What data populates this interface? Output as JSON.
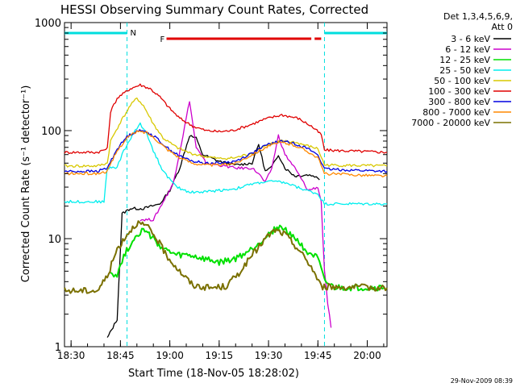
{
  "chart_data": {
    "type": "line",
    "title": "HESSI Observing Summary Count Rates, Corrected",
    "xlabel": "Start Time (18-Nov-05 18:28:02)",
    "ylabel": "Corrected Count Rate (s⁻¹ detector⁻¹)",
    "y_scale": "log",
    "ylim": [
      1,
      1000
    ],
    "xlim": [
      "18:28",
      "20:06"
    ],
    "x_ticks": [
      "18:30",
      "18:45",
      "19:00",
      "19:15",
      "19:30",
      "19:45",
      "20:00"
    ],
    "y_ticks": [
      "1",
      "10",
      "100",
      "1000"
    ],
    "legend_header": [
      "Det 1,3,4,5,6,9,",
      "Att 0"
    ],
    "legend_position": "right",
    "timestamp": "29-Nov-2009 08:39",
    "flags": [
      {
        "label": "N",
        "color": "#00dede",
        "intervals": [
          [
            "18:28",
            "18:47"
          ],
          [
            "19:47",
            "20:06"
          ]
        ]
      },
      {
        "label": "F",
        "color": "#e00000",
        "intervals": [
          [
            "18:59",
            "19:43"
          ],
          [
            "19:44",
            "19:46"
          ]
        ]
      }
    ],
    "series": [
      {
        "name": "3 - 6 keV",
        "color": "#000000",
        "points": [
          [
            "18:41",
            "1.2"
          ],
          [
            "18:44",
            "1.8"
          ],
          [
            "18:45.5",
            "17"
          ],
          [
            "18:48",
            "19"
          ],
          [
            "18:52",
            "19"
          ],
          [
            "18:57",
            "21"
          ],
          [
            "19:00",
            "28"
          ],
          [
            "19:03",
            "45"
          ],
          [
            "19:06",
            "90"
          ],
          [
            "19:08",
            "85"
          ],
          [
            "19:10",
            "60"
          ],
          [
            "19:15",
            "52"
          ],
          [
            "19:20",
            "48"
          ],
          [
            "19:25",
            "50"
          ],
          [
            "19:27",
            "75"
          ],
          [
            "19:29",
            "42"
          ],
          [
            "19:31",
            "46"
          ],
          [
            "19:33",
            "60"
          ],
          [
            "19:35",
            "45"
          ],
          [
            "19:38",
            "38"
          ],
          [
            "19:42",
            "39"
          ],
          [
            "19:44",
            "38"
          ],
          [
            "19:45.5",
            "35"
          ]
        ]
      },
      {
        "name": "6 - 12 keV",
        "color": "#cc00cc",
        "points": [
          [
            "18:51",
            "15"
          ],
          [
            "18:55",
            "15"
          ],
          [
            "18:58",
            "22"
          ],
          [
            "19:01",
            "32"
          ],
          [
            "19:04",
            "90"
          ],
          [
            "19:06",
            "190"
          ],
          [
            "19:08",
            "70"
          ],
          [
            "19:11",
            "50"
          ],
          [
            "19:15",
            "48"
          ],
          [
            "19:20",
            "45"
          ],
          [
            "19:25",
            "45"
          ],
          [
            "19:27",
            "40"
          ],
          [
            "19:29",
            "33"
          ],
          [
            "19:31",
            "45"
          ],
          [
            "19:33",
            "90"
          ],
          [
            "19:35",
            "60"
          ],
          [
            "19:38",
            "45"
          ],
          [
            "19:42",
            "28"
          ],
          [
            "19:45",
            "30"
          ],
          [
            "19:46",
            "22"
          ],
          [
            "19:47",
            "5"
          ],
          [
            "19:48",
            "2.5"
          ],
          [
            "19:49",
            "1.5"
          ]
        ]
      },
      {
        "name": "12 - 25 keV",
        "color": "#00e000",
        "points": [
          [
            "18:42",
            "5"
          ],
          [
            "18:44",
            "4.5"
          ],
          [
            "18:46",
            "7"
          ],
          [
            "18:50",
            "11"
          ],
          [
            "18:52",
            "12"
          ],
          [
            "18:55",
            "10"
          ],
          [
            "18:58",
            "8"
          ],
          [
            "19:02",
            "7"
          ],
          [
            "19:06",
            "7"
          ],
          [
            "19:10",
            "6.5"
          ],
          [
            "19:15",
            "6"
          ],
          [
            "19:20",
            "6.5"
          ],
          [
            "19:25",
            "8"
          ],
          [
            "19:30",
            "11"
          ],
          [
            "19:33",
            "13"
          ],
          [
            "19:37",
            "11"
          ],
          [
            "19:41",
            "8"
          ],
          [
            "19:45",
            "6.5"
          ],
          [
            "19:47",
            "4"
          ],
          [
            "19:50",
            "3.5"
          ],
          [
            "20:05",
            "3.5"
          ]
        ]
      },
      {
        "name": "25 - 50 keV",
        "color": "#00eeee",
        "points": [
          [
            "18:28",
            "22"
          ],
          [
            "18:38",
            "22"
          ],
          [
            "18:40",
            "22"
          ],
          [
            "18:41",
            "45"
          ],
          [
            "18:44",
            "46"
          ],
          [
            "18:46",
            "65"
          ],
          [
            "18:49",
            "95"
          ],
          [
            "18:51",
            "115"
          ],
          [
            "18:53",
            "95"
          ],
          [
            "18:55",
            "65"
          ],
          [
            "18:58",
            "42"
          ],
          [
            "19:02",
            "30"
          ],
          [
            "19:06",
            "27"
          ],
          [
            "19:10",
            "27"
          ],
          [
            "19:15",
            "28"
          ],
          [
            "19:20",
            "29"
          ],
          [
            "19:25",
            "32"
          ],
          [
            "19:30",
            "34"
          ],
          [
            "19:35",
            "33"
          ],
          [
            "19:40",
            "29"
          ],
          [
            "19:45",
            "26"
          ],
          [
            "19:47",
            "21"
          ],
          [
            "20:06",
            "21"
          ]
        ]
      },
      {
        "name": "50 - 100 keV",
        "color": "#d8c800",
        "points": [
          [
            "18:28",
            "47"
          ],
          [
            "18:38",
            "47"
          ],
          [
            "18:41",
            "50"
          ],
          [
            "18:42",
            "80"
          ],
          [
            "18:45",
            "120"
          ],
          [
            "18:48",
            "170"
          ],
          [
            "18:50",
            "200"
          ],
          [
            "18:52",
            "170"
          ],
          [
            "18:55",
            "115"
          ],
          [
            "18:58",
            "85"
          ],
          [
            "19:02",
            "70"
          ],
          [
            "19:06",
            "62"
          ],
          [
            "19:10",
            "58"
          ],
          [
            "19:15",
            "55"
          ],
          [
            "19:20",
            "56"
          ],
          [
            "19:25",
            "62"
          ],
          [
            "19:30",
            "75"
          ],
          [
            "19:34",
            "80"
          ],
          [
            "19:38",
            "78"
          ],
          [
            "19:42",
            "72"
          ],
          [
            "19:45",
            "68"
          ],
          [
            "19:47",
            "48"
          ],
          [
            "20:06",
            "47"
          ]
        ]
      },
      {
        "name": "100 - 300 keV",
        "color": "#e00000",
        "points": [
          [
            "18:28",
            "63"
          ],
          [
            "18:38",
            "63"
          ],
          [
            "18:41",
            "68"
          ],
          [
            "18:42",
            "150"
          ],
          [
            "18:44",
            "200"
          ],
          [
            "18:48",
            "245"
          ],
          [
            "18:51",
            "265"
          ],
          [
            "18:54",
            "245"
          ],
          [
            "18:57",
            "205"
          ],
          [
            "19:00",
            "160"
          ],
          [
            "19:03",
            "130"
          ],
          [
            "19:07",
            "110"
          ],
          [
            "19:11",
            "100"
          ],
          [
            "19:15",
            "98"
          ],
          [
            "19:19",
            "100"
          ],
          [
            "19:24",
            "112"
          ],
          [
            "19:29",
            "128"
          ],
          [
            "19:34",
            "140"
          ],
          [
            "19:39",
            "130"
          ],
          [
            "19:43",
            "110"
          ],
          [
            "19:46",
            "92"
          ],
          [
            "19:47",
            "66"
          ],
          [
            "20:06",
            "63"
          ]
        ]
      },
      {
        "name": "300 - 800 keV",
        "color": "#0000e0",
        "points": [
          [
            "18:28",
            "42"
          ],
          [
            "18:38",
            "42"
          ],
          [
            "18:41",
            "45"
          ],
          [
            "18:44",
            "68"
          ],
          [
            "18:47",
            "88"
          ],
          [
            "18:50",
            "100"
          ],
          [
            "18:53",
            "98"
          ],
          [
            "18:56",
            "85"
          ],
          [
            "18:59",
            "70"
          ],
          [
            "19:03",
            "58"
          ],
          [
            "19:07",
            "52"
          ],
          [
            "19:11",
            "50"
          ],
          [
            "19:15",
            "50"
          ],
          [
            "19:20",
            "52"
          ],
          [
            "19:25",
            "62"
          ],
          [
            "19:30",
            "75"
          ],
          [
            "19:34",
            "80"
          ],
          [
            "19:38",
            "76"
          ],
          [
            "19:42",
            "68"
          ],
          [
            "19:45",
            "60"
          ],
          [
            "19:47",
            "44"
          ],
          [
            "20:06",
            "42"
          ]
        ]
      },
      {
        "name": "800 - 7000 keV",
        "color": "#ff8800",
        "points": [
          [
            "18:28",
            "40"
          ],
          [
            "18:38",
            "40"
          ],
          [
            "18:41",
            "42"
          ],
          [
            "18:44",
            "65"
          ],
          [
            "18:47",
            "86"
          ],
          [
            "18:50",
            "98"
          ],
          [
            "18:53",
            "96"
          ],
          [
            "18:56",
            "82"
          ],
          [
            "18:59",
            "68"
          ],
          [
            "19:03",
            "56"
          ],
          [
            "19:07",
            "50"
          ],
          [
            "19:11",
            "48"
          ],
          [
            "19:15",
            "48"
          ],
          [
            "19:20",
            "50"
          ],
          [
            "19:25",
            "60"
          ],
          [
            "19:30",
            "72"
          ],
          [
            "19:34",
            "78"
          ],
          [
            "19:38",
            "73"
          ],
          [
            "19:42",
            "64"
          ],
          [
            "19:45",
            "56"
          ],
          [
            "19:47",
            "40"
          ],
          [
            "20:06",
            "38"
          ]
        ]
      },
      {
        "name": "7000 - 20000 keV",
        "color": "#7a7000",
        "points": [
          [
            "18:28",
            "3.3"
          ],
          [
            "18:38",
            "3.3"
          ],
          [
            "18:41",
            "4.5"
          ],
          [
            "18:44",
            "8"
          ],
          [
            "18:47",
            "11"
          ],
          [
            "18:50",
            "14"
          ],
          [
            "18:53",
            "13"
          ],
          [
            "18:56",
            "10"
          ],
          [
            "18:59",
            "7"
          ],
          [
            "19:03",
            "5"
          ],
          [
            "19:07",
            "3.7"
          ],
          [
            "19:12",
            "3.5"
          ],
          [
            "19:17",
            "3.6"
          ],
          [
            "19:21",
            "4.8"
          ],
          [
            "19:25",
            "7"
          ],
          [
            "19:29",
            "10"
          ],
          [
            "19:32",
            "12"
          ],
          [
            "19:35",
            "11"
          ],
          [
            "19:39",
            "8"
          ],
          [
            "19:43",
            "5.5"
          ],
          [
            "19:46",
            "3.6"
          ],
          [
            "20:06",
            "3.5"
          ]
        ]
      }
    ]
  }
}
